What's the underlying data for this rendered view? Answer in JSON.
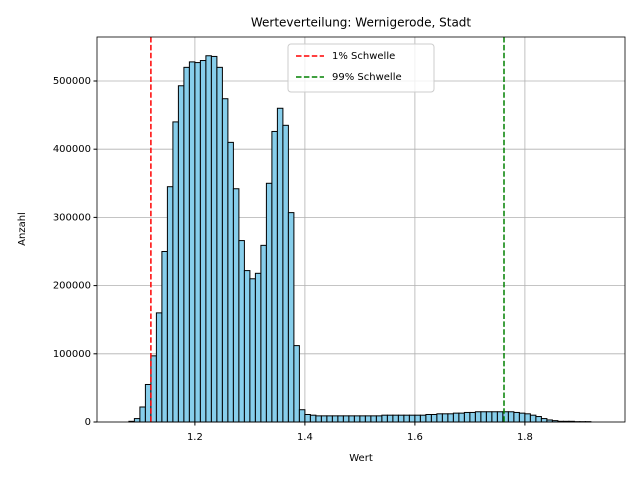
{
  "chart_data": {
    "type": "histogram",
    "title": "Werteverteilung: Wernigerode, Stadt",
    "xlabel": "Wert",
    "ylabel": "Anzahl",
    "bins": [
      1.08,
      1.09,
      1.1,
      1.11,
      1.12,
      1.13,
      1.14,
      1.15,
      1.16,
      1.17,
      1.18,
      1.19,
      1.2,
      1.21,
      1.22,
      1.23,
      1.24,
      1.25,
      1.26,
      1.27,
      1.28,
      1.29,
      1.3,
      1.31,
      1.32,
      1.33,
      1.34,
      1.35,
      1.36,
      1.37,
      1.38,
      1.39,
      1.4,
      1.41,
      1.42,
      1.43,
      1.44,
      1.45,
      1.46,
      1.47,
      1.48,
      1.49,
      1.5,
      1.51,
      1.52,
      1.53,
      1.54,
      1.55,
      1.56,
      1.57,
      1.58,
      1.59,
      1.6,
      1.61,
      1.62,
      1.63,
      1.64,
      1.65,
      1.66,
      1.67,
      1.68,
      1.69,
      1.7,
      1.71,
      1.72,
      1.73,
      1.74,
      1.75,
      1.76,
      1.77,
      1.78,
      1.79,
      1.8,
      1.81,
      1.82,
      1.83,
      1.84,
      1.85,
      1.86,
      1.87,
      1.88,
      1.89,
      1.9,
      1.91,
      1.92
    ],
    "counts": [
      1000,
      5000,
      22000,
      55000,
      97000,
      160000,
      250000,
      345000,
      440000,
      493000,
      520000,
      528000,
      527000,
      530000,
      537000,
      536000,
      520000,
      474000,
      410000,
      342000,
      266000,
      222000,
      210000,
      218000,
      259000,
      350000,
      426000,
      460000,
      435000,
      307000,
      112000,
      18000,
      11000,
      10000,
      9000,
      9000,
      9000,
      9000,
      9000,
      9000,
      9000,
      9000,
      9000,
      9000,
      9000,
      9000,
      10000,
      10000,
      10000,
      10000,
      10000,
      10000,
      10000,
      10000,
      11000,
      11000,
      12000,
      12000,
      12000,
      13000,
      13000,
      14000,
      14000,
      15000,
      15000,
      15000,
      15000,
      15000,
      15000,
      15000,
      14000,
      13000,
      12000,
      10000,
      8000,
      5000,
      3000,
      2000,
      1000,
      1000,
      1000,
      500,
      500,
      500
    ],
    "color": "#87ceeb",
    "edgecolor": "#000000",
    "vlines": [
      {
        "name": "1% Schwelle",
        "value": 1.12,
        "color": "#ff0000"
      },
      {
        "name": "99% Schwelle",
        "value": 1.762,
        "color": "#008000"
      }
    ],
    "xlim": [
      1.022,
      1.982
    ],
    "xticks": [
      1.2,
      1.4,
      1.6,
      1.8
    ],
    "ylim": [
      0,
      564500
    ],
    "yticks": [
      0,
      100000,
      200000,
      300000,
      400000,
      500000
    ],
    "grid": true,
    "legend": "upper center"
  }
}
